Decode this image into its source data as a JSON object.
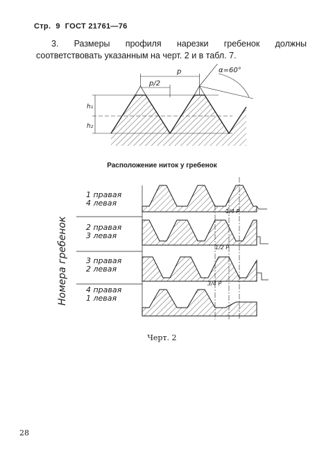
{
  "header": {
    "page_label": "Стр.",
    "page_no": "9",
    "standard": "ГОСТ 21761—76"
  },
  "paragraph": "3. Размеры профиля нарезки гребенок должны соответствовать указанным на черт. 2 и в табл. 7.",
  "profile_labels": {
    "p": "p",
    "p_half": "p/2",
    "angle": "α=60°",
    "h1": "h₁",
    "h2": "h₂"
  },
  "section_title": "Расположение ниток у гребенок",
  "vertical_label": "Номера гребенок",
  "rows": [
    {
      "line1": "1 правая",
      "line2": "4 левая",
      "shift": "1/4 P"
    },
    {
      "line1": "2 правая",
      "line2": "3 левая",
      "shift": "1/2 P"
    },
    {
      "line1": "3 правая",
      "line2": "2 левая",
      "shift": "3/4 P"
    },
    {
      "line1": "4 правая",
      "line2": "1 левая",
      "shift": ""
    }
  ],
  "caption": "Черт. 2",
  "page_number": "28"
}
